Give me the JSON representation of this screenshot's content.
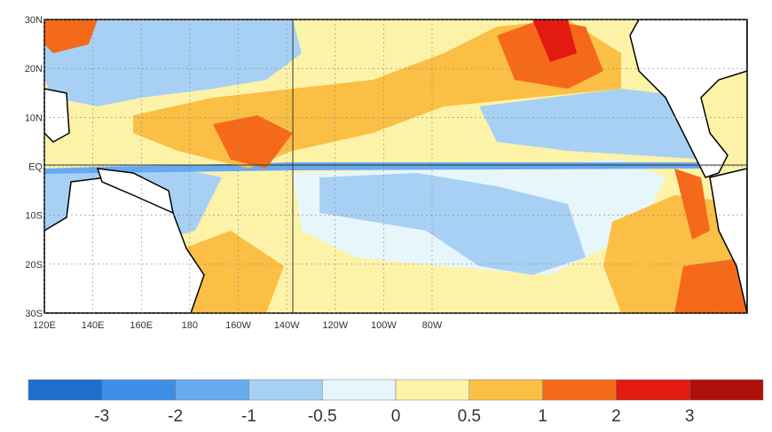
{
  "map": {
    "lat_labels": [
      "30N",
      "20N",
      "10N",
      "EQ",
      "10S",
      "20S",
      "30S"
    ],
    "lon_labels": [
      "120E",
      "140E",
      "160E",
      "180",
      "160W",
      "140W",
      "120W",
      "100W",
      "80W"
    ]
  },
  "colorbar": {
    "labels": [
      "-3",
      "-2",
      "-1",
      "-0.5",
      "0",
      "0.5",
      "1",
      "2",
      "3"
    ],
    "colors": [
      "#1f6fd1",
      "#3d8ee6",
      "#66aaf0",
      "#a8d0f5",
      "#e6f6fa",
      "#fcf3a8",
      "#fbbf45",
      "#f56a1a",
      "#e21a10",
      "#b0100a"
    ]
  }
}
